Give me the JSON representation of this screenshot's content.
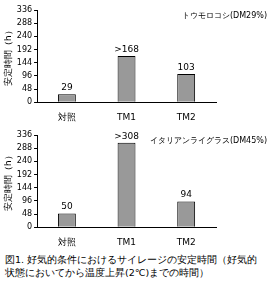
{
  "chart_data": [
    {
      "type": "bar",
      "annotation": "トウモロコシ(DM29%)",
      "ylabel": "安定時間（h）",
      "categories": [
        "対照",
        "TM1",
        "TM2"
      ],
      "values": [
        29,
        168,
        103
      ],
      "value_labels": [
        "29",
        ">168",
        "103"
      ],
      "data_labels": true,
      "color": "#999999",
      "ylim": [
        0,
        336
      ],
      "yticks": [
        0,
        48,
        96,
        144,
        192,
        240,
        288,
        336
      ],
      "grid": false
    },
    {
      "type": "bar",
      "annotation": "イタリアンライグラス(DM45%)",
      "ylabel": "安定時間（h）",
      "categories": [
        "対照",
        "TM1",
        "TM2"
      ],
      "values": [
        50,
        308,
        94
      ],
      "value_labels": [
        "50",
        ">308",
        "94"
      ],
      "data_labels": true,
      "color": "#999999",
      "ylim": [
        0,
        336
      ],
      "yticks": [
        0,
        48,
        96,
        144,
        192,
        240,
        288,
        336
      ],
      "grid": false
    }
  ],
  "caption": "図1. 好気的条件におけるサイレージの安定時間（好気的状態においてから温度上昇(2℃)までの時間）"
}
